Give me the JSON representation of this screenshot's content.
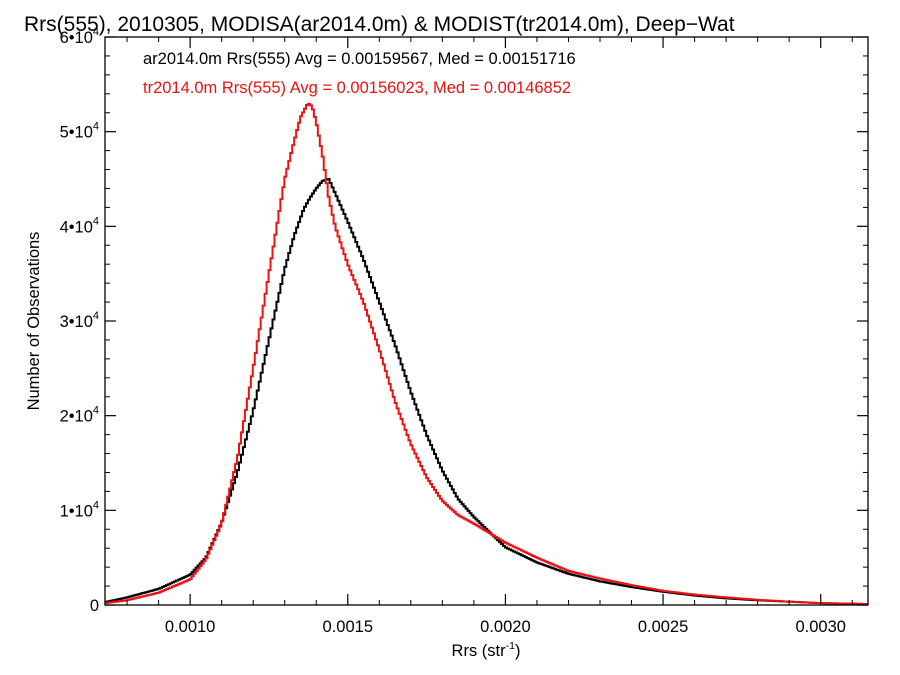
{
  "chart_data": {
    "type": "line",
    "title": "Rrs(555), 2010305, MODISA(ar2014.0m) & MODIST(tr2014.0m), Deep−Wat",
    "xlabel": "Rrs (str",
    "xlabel_sup": "-1",
    "xlabel_close": ")",
    "ylabel": "Number of Observations",
    "xlim": [
      0.00073,
      0.00315
    ],
    "ylim": [
      0,
      60000
    ],
    "x_ticks": [
      {
        "value": 0.001,
        "label": "0.0010"
      },
      {
        "value": 0.0015,
        "label": "0.0015"
      },
      {
        "value": 0.002,
        "label": "0.0020"
      },
      {
        "value": 0.0025,
        "label": "0.0025"
      },
      {
        "value": 0.003,
        "label": "0.0030"
      }
    ],
    "y_ticks": [
      {
        "value": 0,
        "label": "0"
      },
      {
        "value": 10000,
        "label": "1•10",
        "exp": "4"
      },
      {
        "value": 20000,
        "label": "2•10",
        "exp": "4"
      },
      {
        "value": 30000,
        "label": "3•10",
        "exp": "4"
      },
      {
        "value": 40000,
        "label": "4•10",
        "exp": "4"
      },
      {
        "value": 50000,
        "label": "5•10",
        "exp": "4"
      },
      {
        "value": 60000,
        "label": "6•10",
        "exp": "4"
      }
    ],
    "grid": false,
    "annotations": [
      {
        "text": "ar2014.0m Rrs(555) Avg = 0.00159567, Med = 0.00151716",
        "color": "#000000"
      },
      {
        "text": "tr2014.0m Rrs(555) Avg = 0.00156023, Med = 0.00146852",
        "color": "#ee1111"
      }
    ],
    "series": [
      {
        "color": "#000000",
        "x": [
          0.00073,
          0.0008,
          0.0009,
          0.001,
          0.00105,
          0.0011,
          0.00115,
          0.0012,
          0.00125,
          0.0013,
          0.00133,
          0.00136,
          0.00138,
          0.0014,
          0.00142,
          0.00144,
          0.00146,
          0.00148,
          0.0015,
          0.00155,
          0.0016,
          0.00165,
          0.0017,
          0.00175,
          0.0018,
          0.00185,
          0.0019,
          0.00195,
          0.002,
          0.0021,
          0.0022,
          0.0023,
          0.0024,
          0.0025,
          0.0026,
          0.0027,
          0.0028,
          0.0029,
          0.003,
          0.00315
        ],
        "y": [
          300,
          800,
          1700,
          3200,
          5000,
          8700,
          14000,
          20500,
          28000,
          35500,
          39000,
          41800,
          43000,
          44000,
          44800,
          45000,
          43500,
          42000,
          40500,
          36500,
          32000,
          27500,
          22500,
          18000,
          14200,
          11200,
          9300,
          7700,
          6100,
          4500,
          3300,
          2500,
          1900,
          1400,
          1000,
          700,
          500,
          350,
          200,
          100
        ]
      },
      {
        "color": "#ee1111",
        "x": [
          0.00073,
          0.0008,
          0.0009,
          0.001,
          0.00105,
          0.0011,
          0.00115,
          0.0012,
          0.00125,
          0.0013,
          0.00133,
          0.00135,
          0.00137,
          0.00138,
          0.00139,
          0.0014,
          0.00142,
          0.00144,
          0.00146,
          0.00148,
          0.0015,
          0.00155,
          0.0016,
          0.00165,
          0.0017,
          0.00175,
          0.0018,
          0.00185,
          0.0019,
          0.00195,
          0.002,
          0.0021,
          0.0022,
          0.0023,
          0.0024,
          0.0025,
          0.0026,
          0.0027,
          0.0028,
          0.0029,
          0.003,
          0.00315
        ],
        "y": [
          200,
          500,
          1300,
          2700,
          4800,
          8600,
          15500,
          25000,
          35000,
          45000,
          49000,
          51500,
          52800,
          53000,
          52300,
          51000,
          47500,
          43000,
          40000,
          38000,
          36000,
          32000,
          27000,
          21500,
          17000,
          13500,
          11000,
          9500,
          8600,
          7600,
          6600,
          5000,
          3600,
          2800,
          2100,
          1500,
          1100,
          800,
          550,
          350,
          200,
          100
        ]
      }
    ]
  }
}
